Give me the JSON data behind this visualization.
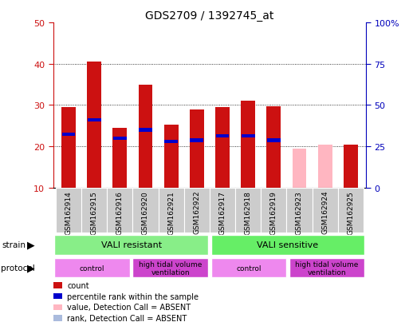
{
  "title": "GDS2709 / 1392745_at",
  "samples": [
    "GSM162914",
    "GSM162915",
    "GSM162916",
    "GSM162920",
    "GSM162921",
    "GSM162922",
    "GSM162917",
    "GSM162918",
    "GSM162919",
    "GSM162923",
    "GSM162924",
    "GSM162925"
  ],
  "count_values": [
    29.5,
    40.5,
    24.5,
    35.0,
    25.3,
    29.0,
    29.5,
    31.0,
    29.7,
    null,
    null,
    20.5
  ],
  "rank_values": [
    23.0,
    26.5,
    22.0,
    24.0,
    21.2,
    21.5,
    22.5,
    22.5,
    21.5,
    null,
    null,
    null
  ],
  "absent_count_values": [
    null,
    null,
    null,
    null,
    null,
    null,
    null,
    null,
    null,
    19.5,
    20.5,
    null
  ],
  "absent_rank_values": [
    null,
    null,
    null,
    null,
    null,
    null,
    null,
    null,
    null,
    null,
    null,
    null
  ],
  "bar_bottom": 10,
  "ylim_left": [
    10,
    50
  ],
  "ylim_right": [
    0,
    100
  ],
  "yticks_left": [
    10,
    20,
    30,
    40,
    50
  ],
  "yticks_right": [
    0,
    25,
    50,
    75,
    100
  ],
  "ylabel_right_labels": [
    "0",
    "25",
    "50",
    "75",
    "100%"
  ],
  "color_count": "#CC1111",
  "color_rank": "#0000CC",
  "color_absent_count": "#FFB6C1",
  "color_absent_rank": "#AABBDD",
  "tick_color_left": "#CC1111",
  "tick_color_right": "#0000BB",
  "grid_color": "#000000",
  "bar_width": 0.55,
  "rank_bar_height": 0.8,
  "strain_group1_label": "VALI resistant",
  "strain_group1_color": "#88EE88",
  "strain_group2_label": "VALI sensitive",
  "strain_group2_color": "#66EE66",
  "protocol_control_color": "#EE88EE",
  "protocol_htv_color": "#CC44CC",
  "sample_bg_color": "#CCCCCC",
  "legend_items": [
    {
      "color": "#CC1111",
      "label": "count"
    },
    {
      "color": "#0000CC",
      "label": "percentile rank within the sample"
    },
    {
      "color": "#FFB6C1",
      "label": "value, Detection Call = ABSENT"
    },
    {
      "color": "#AABBDD",
      "label": "rank, Detection Call = ABSENT"
    }
  ]
}
